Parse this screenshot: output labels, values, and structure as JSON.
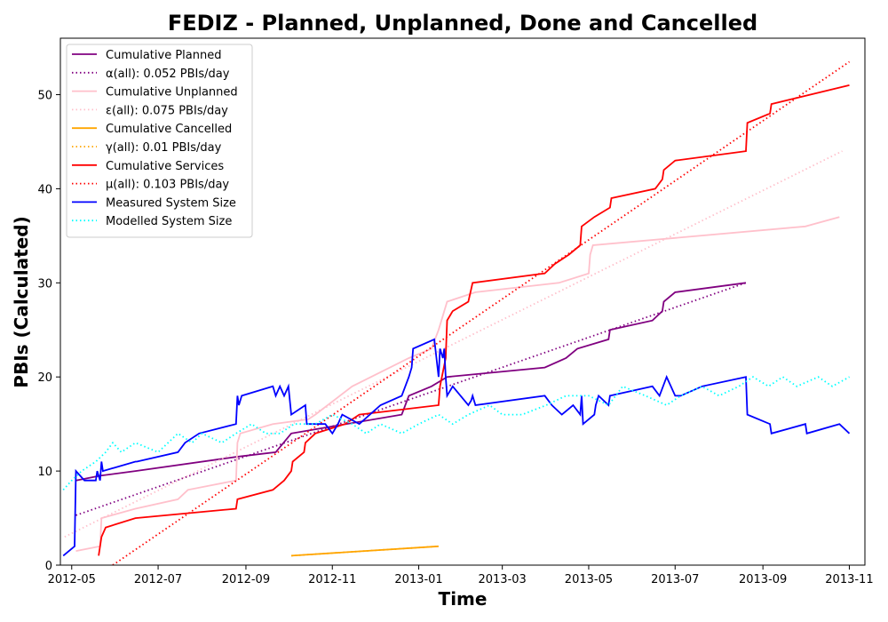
{
  "chart_data": {
    "type": "line",
    "title": "FEDIZ - Planned, Unplanned, Done  and Cancelled",
    "xlabel": "Time",
    "ylabel": "PBIs (Calculated)",
    "xlim": [
      "2012-04-23",
      "2013-11-12"
    ],
    "ylim": [
      0,
      56
    ],
    "x_ticks": [
      {
        "date": "2012-05-01",
        "label": "2012-05"
      },
      {
        "date": "2012-07-01",
        "label": "2012-07"
      },
      {
        "date": "2012-09-01",
        "label": "2012-09"
      },
      {
        "date": "2012-11-01",
        "label": "2012-11"
      },
      {
        "date": "2013-01-01",
        "label": "2013-01"
      },
      {
        "date": "2013-03-01",
        "label": "2013-03"
      },
      {
        "date": "2013-05-01",
        "label": "2013-05"
      },
      {
        "date": "2013-07-01",
        "label": "2013-07"
      },
      {
        "date": "2013-09-01",
        "label": "2013-09"
      },
      {
        "date": "2013-11-01",
        "label": "2013-11"
      }
    ],
    "y_ticks": [
      0,
      10,
      20,
      30,
      40,
      50
    ],
    "grid": false,
    "legend_position": "top-left",
    "series": [
      {
        "name": "Cumulative Planned",
        "color": "#800080",
        "style": "solid",
        "points": [
          [
            "2012-05-04",
            9
          ],
          [
            "2012-05-21",
            9.5
          ],
          [
            "2012-06-15",
            10
          ],
          [
            "2012-08-25",
            11.5
          ],
          [
            "2012-09-22",
            12
          ],
          [
            "2012-10-03",
            14
          ],
          [
            "2012-12-20",
            16
          ],
          [
            "2012-12-25",
            18
          ],
          [
            "2013-01-10",
            19
          ],
          [
            "2013-01-21",
            20
          ],
          [
            "2013-03-31",
            21
          ],
          [
            "2013-04-15",
            22
          ],
          [
            "2013-04-23",
            23
          ],
          [
            "2013-05-15",
            24
          ],
          [
            "2013-05-16",
            25
          ],
          [
            "2013-06-15",
            26
          ],
          [
            "2013-06-22",
            27
          ],
          [
            "2013-06-23",
            28
          ],
          [
            "2013-07-01",
            29
          ],
          [
            "2013-08-20",
            30
          ]
        ]
      },
      {
        "name": "α(all): 0.052 PBIs/day",
        "color": "#800080",
        "style": "dotted",
        "points": [
          [
            "2012-05-04",
            5.3
          ],
          [
            "2013-08-20",
            30
          ]
        ]
      },
      {
        "name": "Cumulative Unplanned",
        "color": "#ffc0cb",
        "style": "solid",
        "points": [
          [
            "2012-05-04",
            1.5
          ],
          [
            "2012-05-21",
            2
          ],
          [
            "2012-05-22",
            5
          ],
          [
            "2012-06-15",
            6
          ],
          [
            "2012-07-15",
            7
          ],
          [
            "2012-07-22",
            8
          ],
          [
            "2012-08-25",
            9
          ],
          [
            "2012-08-26",
            13
          ],
          [
            "2012-08-28",
            14
          ],
          [
            "2012-09-20",
            15
          ],
          [
            "2012-10-15",
            15.5
          ],
          [
            "2012-10-20",
            16
          ],
          [
            "2012-11-15",
            19
          ],
          [
            "2012-12-25",
            22
          ],
          [
            "2013-01-10",
            23
          ],
          [
            "2013-01-15",
            25
          ],
          [
            "2013-01-21",
            28
          ],
          [
            "2013-02-10",
            29
          ],
          [
            "2013-04-10",
            30
          ],
          [
            "2013-05-01",
            31
          ],
          [
            "2013-05-02",
            33
          ],
          [
            "2013-05-04",
            34
          ],
          [
            "2013-10-01",
            36
          ],
          [
            "2013-10-25",
            37
          ]
        ]
      },
      {
        "name": "ε(all): 0.075 PBIs/day",
        "color": "#ffc0cb",
        "style": "dotted",
        "points": [
          [
            "2012-04-26",
            3
          ],
          [
            "2013-10-27",
            44
          ]
        ]
      },
      {
        "name": "Cumulative Cancelled",
        "color": "#ffa500",
        "style": "solid",
        "points": [
          [
            "2012-10-03",
            1
          ],
          [
            "2013-01-15",
            2
          ]
        ]
      },
      {
        "name": "γ(all): 0.01 PBIs/day",
        "color": "#ffa500",
        "style": "dotted",
        "points": [
          [
            "2012-10-03",
            1
          ],
          [
            "2013-01-15",
            2
          ]
        ]
      },
      {
        "name": "Cumulative Services",
        "color": "#ff0000",
        "style": "solid",
        "points": [
          [
            "2012-05-20",
            1
          ],
          [
            "2012-05-22",
            3
          ],
          [
            "2012-05-25",
            4
          ],
          [
            "2012-06-15",
            5
          ],
          [
            "2012-08-25",
            6
          ],
          [
            "2012-08-26",
            7
          ],
          [
            "2012-09-20",
            8
          ],
          [
            "2012-09-28",
            9
          ],
          [
            "2012-10-03",
            10
          ],
          [
            "2012-10-04",
            11
          ],
          [
            "2012-10-12",
            12
          ],
          [
            "2012-10-13",
            13
          ],
          [
            "2012-10-20",
            14
          ],
          [
            "2012-11-10",
            15
          ],
          [
            "2012-11-20",
            16
          ],
          [
            "2013-01-15",
            17
          ],
          [
            "2013-01-16",
            19
          ],
          [
            "2013-01-20",
            22
          ],
          [
            "2013-01-21",
            26
          ],
          [
            "2013-01-25",
            27
          ],
          [
            "2013-02-05",
            28
          ],
          [
            "2013-02-08",
            30
          ],
          [
            "2013-03-31",
            31
          ],
          [
            "2013-04-07",
            32
          ],
          [
            "2013-04-17",
            33
          ],
          [
            "2013-04-25",
            34
          ],
          [
            "2013-04-26",
            36
          ],
          [
            "2013-05-05",
            37
          ],
          [
            "2013-05-16",
            38
          ],
          [
            "2013-05-17",
            39
          ],
          [
            "2013-06-17",
            40
          ],
          [
            "2013-06-22",
            41
          ],
          [
            "2013-06-23",
            42
          ],
          [
            "2013-07-01",
            43
          ],
          [
            "2013-08-20",
            44
          ],
          [
            "2013-08-21",
            47
          ],
          [
            "2013-09-06",
            48
          ],
          [
            "2013-09-07",
            49
          ],
          [
            "2013-11-01",
            51
          ]
        ]
      },
      {
        "name": "μ(all): 0.103 PBIs/day",
        "color": "#ff0000",
        "style": "dotted",
        "points": [
          [
            "2012-05-30",
            0
          ],
          [
            "2013-11-01",
            53.5
          ]
        ]
      },
      {
        "name": "Measured System Size",
        "color": "#0000ff",
        "style": "solid",
        "points": [
          [
            "2012-04-25",
            1
          ],
          [
            "2012-05-03",
            2
          ],
          [
            "2012-05-04",
            10
          ],
          [
            "2012-05-10",
            9
          ],
          [
            "2012-05-18",
            9
          ],
          [
            "2012-05-19",
            10
          ],
          [
            "2012-05-21",
            9
          ],
          [
            "2012-05-22",
            11
          ],
          [
            "2012-05-23",
            10
          ],
          [
            "2012-06-15",
            11
          ],
          [
            "2012-06-16",
            11
          ],
          [
            "2012-07-15",
            12
          ],
          [
            "2012-07-20",
            13
          ],
          [
            "2012-07-30",
            14
          ],
          [
            "2012-08-25",
            15
          ],
          [
            "2012-08-26",
            18
          ],
          [
            "2012-08-27",
            17
          ],
          [
            "2012-08-29",
            18
          ],
          [
            "2012-09-20",
            19
          ],
          [
            "2012-09-22",
            18
          ],
          [
            "2012-09-25",
            19
          ],
          [
            "2012-09-28",
            18
          ],
          [
            "2012-10-01",
            19
          ],
          [
            "2012-10-03",
            16
          ],
          [
            "2012-10-13",
            17
          ],
          [
            "2012-10-14",
            15
          ],
          [
            "2012-10-25",
            15
          ],
          [
            "2012-10-27",
            15
          ],
          [
            "2012-11-01",
            14
          ],
          [
            "2012-11-05",
            15
          ],
          [
            "2012-11-08",
            16
          ],
          [
            "2012-11-20",
            15
          ],
          [
            "2012-12-05",
            17
          ],
          [
            "2012-12-20",
            18
          ],
          [
            "2012-12-25",
            20
          ],
          [
            "2012-12-27",
            21
          ],
          [
            "2012-12-28",
            23
          ],
          [
            "2013-01-12",
            24
          ],
          [
            "2013-01-15",
            20
          ],
          [
            "2013-01-16",
            23
          ],
          [
            "2013-01-18",
            22
          ],
          [
            "2013-01-19",
            23
          ],
          [
            "2013-01-20",
            20
          ],
          [
            "2013-01-21",
            18
          ],
          [
            "2013-01-25",
            19
          ],
          [
            "2013-02-05",
            17
          ],
          [
            "2013-02-07",
            17.5
          ],
          [
            "2013-02-08",
            18
          ],
          [
            "2013-02-10",
            17
          ],
          [
            "2013-03-31",
            18
          ],
          [
            "2013-04-05",
            17
          ],
          [
            "2013-04-12",
            16
          ],
          [
            "2013-04-20",
            17
          ],
          [
            "2013-04-25",
            16
          ],
          [
            "2013-04-26",
            18
          ],
          [
            "2013-04-27",
            15
          ],
          [
            "2013-05-05",
            16
          ],
          [
            "2013-05-06",
            17
          ],
          [
            "2013-05-08",
            18
          ],
          [
            "2013-05-15",
            17
          ],
          [
            "2013-05-16",
            18
          ],
          [
            "2013-06-15",
            19
          ],
          [
            "2013-06-20",
            18
          ],
          [
            "2013-06-25",
            20
          ],
          [
            "2013-06-28",
            19
          ],
          [
            "2013-07-01",
            18
          ],
          [
            "2013-07-05",
            18
          ],
          [
            "2013-07-20",
            19
          ],
          [
            "2013-08-20",
            20
          ],
          [
            "2013-08-21",
            16
          ],
          [
            "2013-09-06",
            15
          ],
          [
            "2013-09-07",
            14
          ],
          [
            "2013-10-01",
            15
          ],
          [
            "2013-10-02",
            14
          ],
          [
            "2013-10-25",
            15
          ],
          [
            "2013-11-01",
            14
          ]
        ]
      },
      {
        "name": "Modelled System Size",
        "color": "#00ffff",
        "style": "dotted",
        "points": [
          [
            "2012-04-25",
            8
          ],
          [
            "2012-05-01",
            9
          ],
          [
            "2012-05-08",
            10
          ],
          [
            "2012-05-18",
            11
          ],
          [
            "2012-05-25",
            12
          ],
          [
            "2012-05-30",
            13
          ],
          [
            "2012-06-05",
            12
          ],
          [
            "2012-06-15",
            13
          ],
          [
            "2012-07-01",
            12
          ],
          [
            "2012-07-15",
            14
          ],
          [
            "2012-07-25",
            13
          ],
          [
            "2012-08-01",
            14
          ],
          [
            "2012-08-15",
            13
          ],
          [
            "2012-08-25",
            14
          ],
          [
            "2012-09-05",
            15
          ],
          [
            "2012-09-15",
            14
          ],
          [
            "2012-09-25",
            14
          ],
          [
            "2012-10-05",
            15
          ],
          [
            "2012-10-20",
            15
          ],
          [
            "2012-11-01",
            16
          ],
          [
            "2012-11-15",
            15
          ],
          [
            "2012-11-25",
            14
          ],
          [
            "2012-12-05",
            15
          ],
          [
            "2012-12-20",
            14
          ],
          [
            "2013-01-01",
            15
          ],
          [
            "2013-01-15",
            16
          ],
          [
            "2013-01-25",
            15
          ],
          [
            "2013-02-05",
            16
          ],
          [
            "2013-02-20",
            17
          ],
          [
            "2013-03-01",
            16
          ],
          [
            "2013-03-15",
            16
          ],
          [
            "2013-04-01",
            17
          ],
          [
            "2013-04-15",
            18
          ],
          [
            "2013-05-01",
            18
          ],
          [
            "2013-05-15",
            17
          ],
          [
            "2013-05-25",
            19
          ],
          [
            "2013-06-10",
            18
          ],
          [
            "2013-06-25",
            17
          ],
          [
            "2013-07-05",
            18
          ],
          [
            "2013-07-20",
            19
          ],
          [
            "2013-08-01",
            18
          ],
          [
            "2013-08-15",
            19
          ],
          [
            "2013-08-25",
            20
          ],
          [
            "2013-09-05",
            19
          ],
          [
            "2013-09-15",
            20
          ],
          [
            "2013-09-25",
            19
          ],
          [
            "2013-10-10",
            20
          ],
          [
            "2013-10-20",
            19
          ],
          [
            "2013-11-01",
            20
          ]
        ]
      }
    ]
  }
}
